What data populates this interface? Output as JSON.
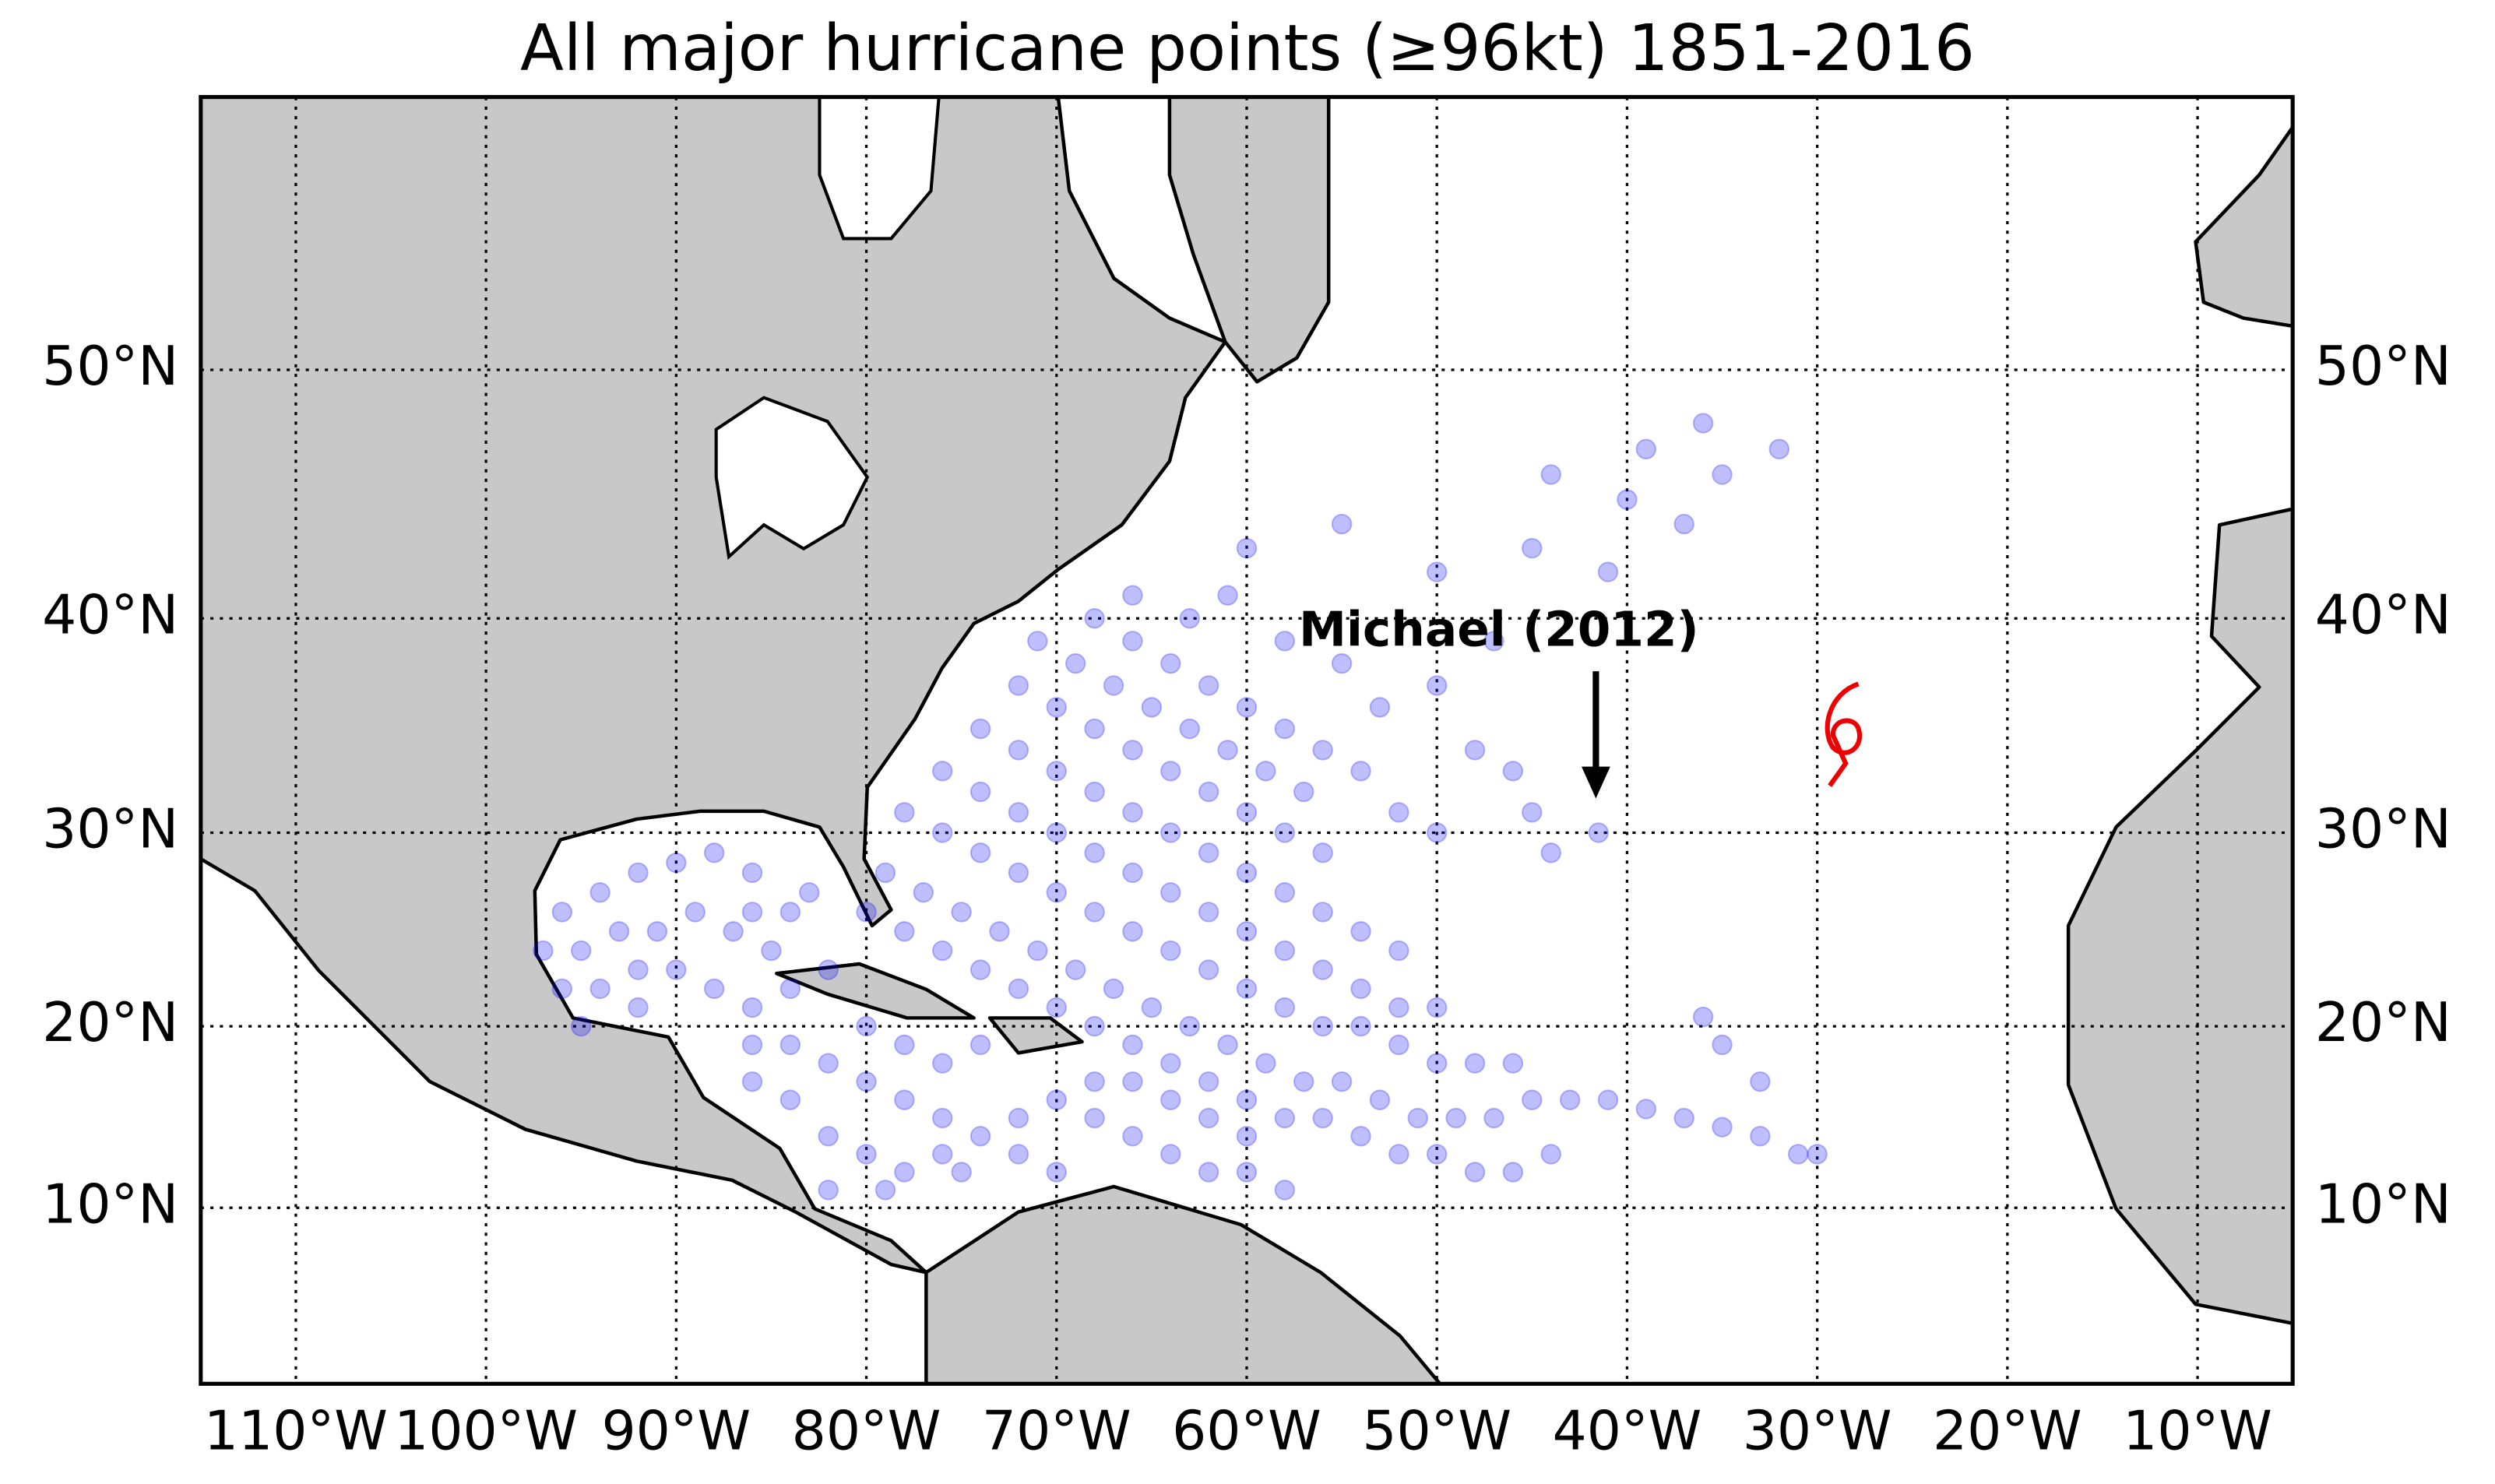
{
  "chart_data": {
    "type": "scatter",
    "title": "All major hurricane points (≥96kt) 1851-2016",
    "annotation": "Michael (2012)",
    "projection": "mercator",
    "color": "#0000ff",
    "alpha": 0.25,
    "grid": true,
    "xlim": [
      -115,
      -5
    ],
    "ylim": [
      0,
      59
    ],
    "xticks": [
      {
        "value": -110,
        "label": "110°W"
      },
      {
        "value": -100,
        "label": "100°W"
      },
      {
        "value": -90,
        "label": "90°W"
      },
      {
        "value": -80,
        "label": "80°W"
      },
      {
        "value": -70,
        "label": "70°W"
      },
      {
        "value": -60,
        "label": "60°W"
      },
      {
        "value": -50,
        "label": "50°W"
      },
      {
        "value": -40,
        "label": "40°W"
      },
      {
        "value": -30,
        "label": "30°W"
      },
      {
        "value": -20,
        "label": "20°W"
      },
      {
        "value": -10,
        "label": "10°W"
      }
    ],
    "yticks": [
      {
        "value": 10,
        "label": "10°N"
      },
      {
        "value": 20,
        "label": "20°N"
      },
      {
        "value": 30,
        "label": "30°N"
      },
      {
        "value": 40,
        "label": "40°N"
      },
      {
        "value": 50,
        "label": "50°N"
      }
    ],
    "x": [
      -96,
      -94,
      -92,
      -90,
      -88,
      -86,
      -95,
      -93,
      -91,
      -89,
      -87,
      -85,
      -96,
      -94,
      -92,
      -90,
      -88,
      -86,
      -84,
      -82,
      -95,
      -92,
      -97,
      -84,
      -83,
      -86,
      -86,
      -84,
      -82,
      -80,
      -78,
      -76,
      -74,
      -72,
      -70,
      -68,
      -66,
      -64,
      -62,
      -82,
      -80,
      -78,
      -76,
      -72,
      -70,
      -68,
      -66,
      -64,
      -62,
      -60,
      -80,
      -78,
      -76,
      -74,
      -84,
      -86,
      -82,
      -79,
      -75,
      -60,
      -58,
      -80,
      -78,
      -76,
      -74,
      -72,
      -70,
      -68,
      -66,
      -64,
      -62,
      -60,
      -58,
      -56,
      -54,
      -52,
      -50,
      -48,
      -46,
      -44,
      -79,
      -77,
      -75,
      -73,
      -71,
      -69,
      -67,
      -65,
      -63,
      -61,
      -59,
      -57,
      -55,
      -53,
      -51,
      -49,
      -47,
      -45,
      -43,
      -41,
      -39,
      -37,
      -35,
      -33,
      -31,
      -30,
      -33,
      -35,
      -36,
      -78,
      -76,
      -74,
      -72,
      -70,
      -68,
      -66,
      -64,
      -62,
      -60,
      -58,
      -56,
      -54,
      -52,
      -50,
      -48,
      -46,
      -76,
      -74,
      -72,
      -70,
      -68,
      -66,
      -64,
      -62,
      -60,
      -58,
      -56,
      -54,
      -52,
      -50,
      -74,
      -72,
      -70,
      -68,
      -66,
      -64,
      -62,
      -60,
      -58,
      -56,
      -54,
      -52,
      -72,
      -70,
      -68,
      -66,
      -64,
      -62,
      -60,
      -58,
      -56,
      -71,
      -69,
      -67,
      -65,
      -63,
      -61,
      -59,
      -57,
      -68,
      -66,
      -64,
      -62,
      -60,
      -58,
      -56,
      -54,
      -52,
      -50,
      -66,
      -63,
      -61,
      -58,
      -55,
      -53,
      -60,
      -55,
      -50,
      -47,
      -48,
      -46,
      -45,
      -44,
      -50,
      -45,
      -44,
      -40,
      -39,
      -36,
      -35,
      -32,
      -37,
      -41,
      -41.5
    ],
    "values": [
      26,
      27,
      28,
      28.5,
      29,
      28,
      24,
      25,
      25,
      26,
      25,
      24,
      22,
      22,
      23,
      23,
      22,
      21,
      22,
      23,
      20,
      21,
      24,
      26,
      27,
      26,
      17,
      16,
      18,
      17,
      16,
      15,
      14,
      15,
      16,
      15,
      14,
      13,
      12,
      14,
      13,
      12,
      13,
      13,
      12,
      17,
      17,
      16,
      15,
      14,
      20,
      19,
      18,
      19,
      19,
      19,
      11,
      11,
      12,
      12,
      11,
      26,
      25,
      24,
      23,
      22,
      21,
      20,
      19,
      18,
      17,
      16,
      15,
      15,
      14,
      13,
      13,
      12,
      12,
      13,
      28,
      27,
      26,
      25,
      24,
      23,
      22,
      21,
      20,
      19,
      18,
      17,
      17,
      16,
      15,
      15,
      15,
      16,
      16,
      16,
      15.5,
      15,
      14.5,
      14,
      13,
      13,
      17,
      19,
      20.5,
      31,
      30,
      29,
      28,
      27,
      26,
      25,
      24,
      23,
      22,
      21,
      20,
      20,
      19,
      18,
      18,
      18,
      33,
      32,
      31,
      30,
      29,
      28,
      27,
      26,
      25,
      24,
      23,
      22,
      21,
      21,
      35,
      34,
      33,
      32,
      31,
      30,
      29,
      28,
      27,
      26,
      25,
      24,
      37,
      36,
      35,
      34,
      33,
      32,
      31,
      30,
      29,
      39,
      38,
      37,
      36,
      35,
      34,
      33,
      32,
      40,
      39,
      38,
      37,
      36,
      35,
      34,
      33,
      31,
      30,
      41,
      40,
      41,
      39,
      38,
      36,
      43,
      44,
      42,
      39,
      34,
      33,
      31,
      29,
      37,
      43,
      46,
      45,
      47,
      48,
      46,
      47,
      44,
      42,
      30
    ]
  }
}
